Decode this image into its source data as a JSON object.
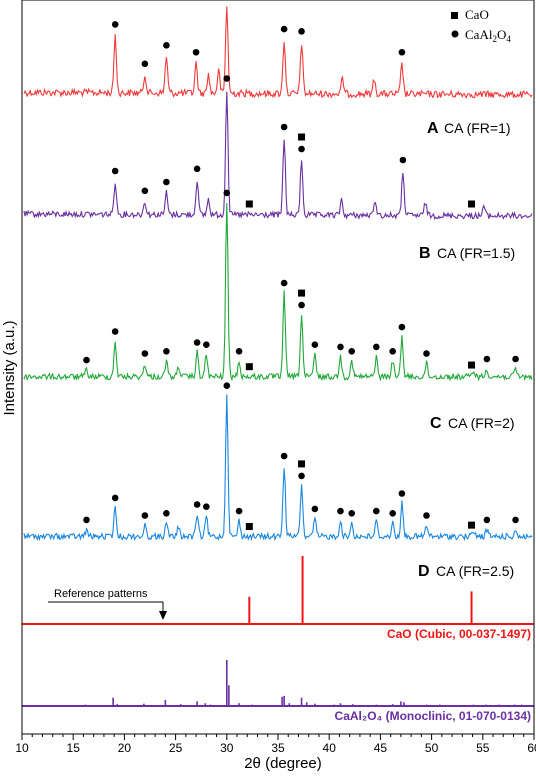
{
  "chart_data": {
    "type": "line",
    "xlabel": "2θ (degree)",
    "ylabel": "Intensity (a.u.)",
    "xlim": [
      10,
      60
    ],
    "x_ticks": [
      10,
      15,
      20,
      25,
      30,
      35,
      40,
      45,
      50,
      55,
      60
    ],
    "legend": {
      "position": "top-right",
      "items": [
        {
          "marker": "square",
          "label": "CaO"
        },
        {
          "marker": "circle",
          "label": "CaAl",
          "sub": "2",
          "label2": "O",
          "sub2": "4"
        }
      ]
    },
    "annotation": "Reference patterns",
    "colors": {
      "A": "#f0393a",
      "B": "#6a2fa0",
      "C": "#22a83a",
      "D": "#1a86e0",
      "CaO_ref": "#f01414",
      "CaAl2O4_ref": "#6a2fa0"
    },
    "series": [
      {
        "letter": "A",
        "name": "CA (FR=1)",
        "baseline": 1.0,
        "peaks": [
          [
            19.1,
            5.0
          ],
          [
            22.0,
            1.6
          ],
          [
            24.1,
            3.2
          ],
          [
            27.0,
            2.6
          ],
          [
            28.2,
            1.6
          ],
          [
            29.2,
            2.0
          ],
          [
            30.0,
            7.6
          ],
          [
            35.6,
            4.6
          ],
          [
            37.3,
            4.4
          ],
          [
            41.3,
            1.3
          ],
          [
            44.4,
            1.3
          ],
          [
            47.1,
            2.6
          ]
        ],
        "circles": [
          19.1,
          22.0,
          24.1,
          27.0,
          30.0,
          35.6,
          37.3,
          47.1
        ],
        "squares": []
      },
      {
        "letter": "B",
        "name": "CA (FR=1.5)",
        "baseline": 1.0,
        "peaks": [
          [
            19.1,
            3.0
          ],
          [
            22.0,
            1.2
          ],
          [
            24.1,
            2.0
          ],
          [
            27.1,
            3.2
          ],
          [
            28.2,
            1.4
          ],
          [
            30.0,
            11.4
          ],
          [
            35.6,
            7.0
          ],
          [
            37.3,
            5.0
          ],
          [
            41.2,
            1.4
          ],
          [
            44.5,
            1.4
          ],
          [
            47.2,
            4.0
          ],
          [
            49.4,
            1.2
          ],
          [
            55.1,
            0.9
          ]
        ],
        "circles": [
          19.1,
          22.0,
          24.1,
          27.1,
          30.0,
          35.6,
          37.3,
          47.2
        ],
        "squares": [
          32.2,
          37.3,
          53.9
        ]
      },
      {
        "letter": "C",
        "name": "CA (FR=2)",
        "baseline": 1.3,
        "peaks": [
          [
            16.3,
            0.6
          ],
          [
            19.1,
            3.2
          ],
          [
            22.0,
            1.2
          ],
          [
            24.1,
            1.4
          ],
          [
            25.3,
            1.0
          ],
          [
            27.1,
            2.2
          ],
          [
            28.0,
            2.0
          ],
          [
            30.0,
            15.8
          ],
          [
            31.2,
            1.4
          ],
          [
            35.6,
            7.6
          ],
          [
            37.3,
            5.6
          ],
          [
            38.6,
            2.0
          ],
          [
            41.1,
            1.8
          ],
          [
            42.2,
            1.4
          ],
          [
            44.6,
            1.8
          ],
          [
            46.2,
            1.4
          ],
          [
            47.1,
            3.6
          ],
          [
            49.5,
            1.2
          ],
          [
            54.1,
            0.6
          ],
          [
            55.4,
            0.7
          ],
          [
            58.2,
            0.7
          ]
        ],
        "circles": [
          16.3,
          19.1,
          22.0,
          24.1,
          27.1,
          28.0,
          30.0,
          31.2,
          35.6,
          37.3,
          38.6,
          41.1,
          42.2,
          44.6,
          46.2,
          47.1,
          49.5,
          55.4,
          58.2
        ],
        "squares": [
          32.2,
          37.3,
          53.9
        ]
      },
      {
        "letter": "D",
        "name": "CA (FR=2.5)",
        "baseline": 1.5,
        "peaks": [
          [
            16.3,
            0.6
          ],
          [
            19.1,
            2.6
          ],
          [
            22.0,
            1.0
          ],
          [
            24.1,
            1.2
          ],
          [
            25.3,
            0.9
          ],
          [
            27.1,
            2.0
          ],
          [
            28.0,
            1.8
          ],
          [
            30.0,
            12.8
          ],
          [
            31.2,
            1.4
          ],
          [
            35.6,
            6.4
          ],
          [
            37.3,
            4.6
          ],
          [
            38.6,
            1.6
          ],
          [
            41.1,
            1.4
          ],
          [
            42.2,
            1.2
          ],
          [
            44.6,
            1.4
          ],
          [
            46.2,
            1.2
          ],
          [
            47.1,
            3.0
          ],
          [
            49.5,
            1.0
          ],
          [
            54.1,
            0.5
          ],
          [
            55.4,
            0.6
          ],
          [
            58.2,
            0.6
          ]
        ],
        "circles": [
          16.3,
          19.1,
          22.0,
          24.1,
          27.1,
          28.0,
          30.0,
          31.2,
          35.6,
          37.3,
          38.6,
          41.1,
          42.2,
          44.6,
          46.2,
          47.1,
          49.5,
          55.4,
          58.2
        ],
        "squares": [
          32.2,
          37.3,
          53.9
        ]
      }
    ],
    "references": [
      {
        "name": "CaO (Cubic, 00-037-1497)",
        "lines": [
          [
            32.2,
            40
          ],
          [
            37.4,
            100
          ],
          [
            53.9,
            48
          ]
        ]
      },
      {
        "name": "CaAl₂O₄ (Monoclinic, 01-070-0134)",
        "lines": [
          [
            16.2,
            3
          ],
          [
            18.9,
            18
          ],
          [
            19.3,
            4
          ],
          [
            21.9,
            5
          ],
          [
            24.0,
            13
          ],
          [
            25.5,
            4
          ],
          [
            27.1,
            10
          ],
          [
            27.9,
            6
          ],
          [
            28.4,
            3
          ],
          [
            30.0,
            100
          ],
          [
            30.2,
            45
          ],
          [
            31.2,
            6
          ],
          [
            32.5,
            3
          ],
          [
            35.4,
            20
          ],
          [
            35.6,
            22
          ],
          [
            36.1,
            6
          ],
          [
            37.3,
            18
          ],
          [
            37.8,
            8
          ],
          [
            38.6,
            5
          ],
          [
            40.5,
            3
          ],
          [
            41.1,
            6
          ],
          [
            42.3,
            4
          ],
          [
            44.6,
            3
          ],
          [
            46.2,
            4
          ],
          [
            47.0,
            10
          ],
          [
            47.3,
            8
          ],
          [
            49.5,
            3
          ],
          [
            50.8,
            3
          ],
          [
            54.1,
            3
          ],
          [
            55.3,
            3
          ],
          [
            56.6,
            3
          ],
          [
            58.1,
            3
          ],
          [
            58.8,
            3
          ]
        ]
      }
    ]
  }
}
